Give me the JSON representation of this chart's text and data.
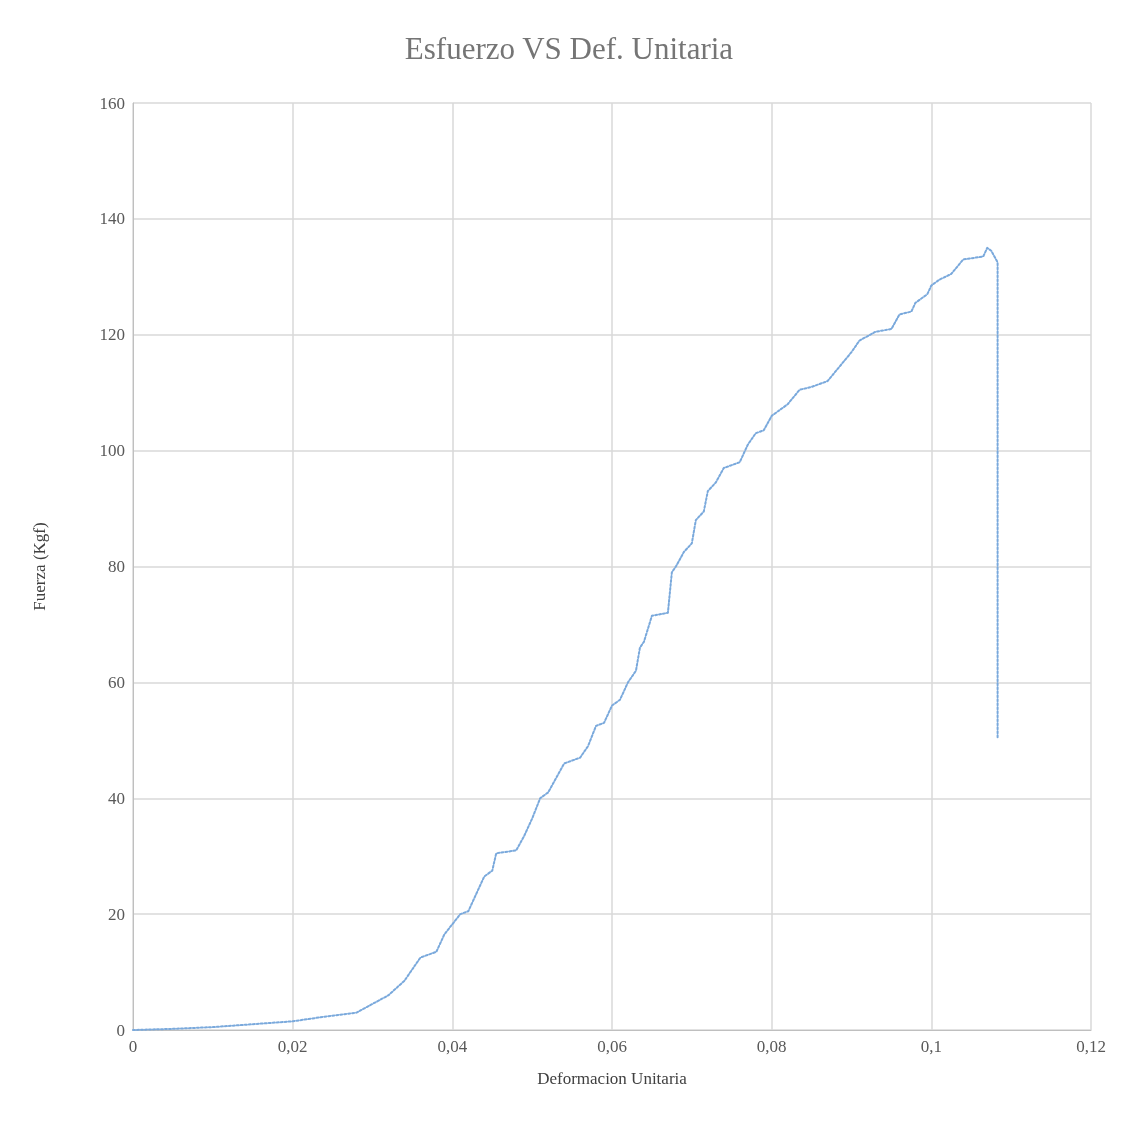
{
  "chart_data": {
    "type": "line",
    "title": "Esfuerzo VS Def. Unitaria",
    "xlabel": "Deformacion Unitaria",
    "ylabel": "Fuerza (Kgf)",
    "xlim": [
      0,
      0.12
    ],
    "xticks": [
      {
        "value": 0,
        "label": "0"
      },
      {
        "value": 0.02,
        "label": "0,02"
      },
      {
        "value": 0.04,
        "label": "0,04"
      },
      {
        "value": 0.06,
        "label": "0,06"
      },
      {
        "value": 0.08,
        "label": "0,08"
      },
      {
        "value": 0.1,
        "label": "0,1"
      },
      {
        "value": 0.12,
        "label": "0,12"
      }
    ],
    "ylim": [
      0,
      160
    ],
    "yticks": [
      0,
      20,
      40,
      60,
      80,
      100,
      120,
      140,
      160
    ],
    "grid": true,
    "marker": "none",
    "line_style": "dotted",
    "series": [
      {
        "color": "#7aa9dc",
        "x": [
          0,
          0.005,
          0.01,
          0.015,
          0.02,
          0.024,
          0.028,
          0.03,
          0.032,
          0.034,
          0.036,
          0.038,
          0.039,
          0.041,
          0.042,
          0.043,
          0.044,
          0.045,
          0.0455,
          0.048,
          0.049,
          0.05,
          0.051,
          0.052,
          0.053,
          0.054,
          0.056,
          0.057,
          0.058,
          0.059,
          0.06,
          0.061,
          0.062,
          0.063,
          0.0635,
          0.064,
          0.065,
          0.067,
          0.0675,
          0.068,
          0.069,
          0.07,
          0.0705,
          0.0715,
          0.072,
          0.073,
          0.074,
          0.076,
          0.077,
          0.078,
          0.079,
          0.08,
          0.081,
          0.082,
          0.0835,
          0.085,
          0.087,
          0.0885,
          0.09,
          0.091,
          0.093,
          0.095,
          0.096,
          0.0975,
          0.098,
          0.0995,
          0.1,
          0.101,
          0.1025,
          0.104,
          0.1065,
          0.107,
          0.1075,
          0.1083,
          0.1083
        ],
        "values": [
          0,
          0.2,
          0.5,
          1,
          1.5,
          2.3,
          3,
          4.5,
          6,
          8.5,
          12.5,
          13.5,
          16.5,
          20,
          20.5,
          23.5,
          26.5,
          27.5,
          30.5,
          31,
          33.5,
          36.5,
          40,
          41,
          43.5,
          46,
          47,
          49,
          52.5,
          53,
          56,
          57,
          60,
          62,
          66,
          67,
          71.5,
          72,
          79,
          80,
          82.5,
          84,
          88,
          89.5,
          93,
          94.5,
          97,
          98,
          101,
          103,
          103.5,
          106,
          107,
          108,
          110.5,
          111,
          112,
          114.5,
          117,
          119,
          120.5,
          121,
          123.5,
          124,
          125.5,
          127,
          128.5,
          129.5,
          130.5,
          133,
          133.5,
          135,
          134.5,
          132.5,
          50.5
        ]
      }
    ]
  }
}
